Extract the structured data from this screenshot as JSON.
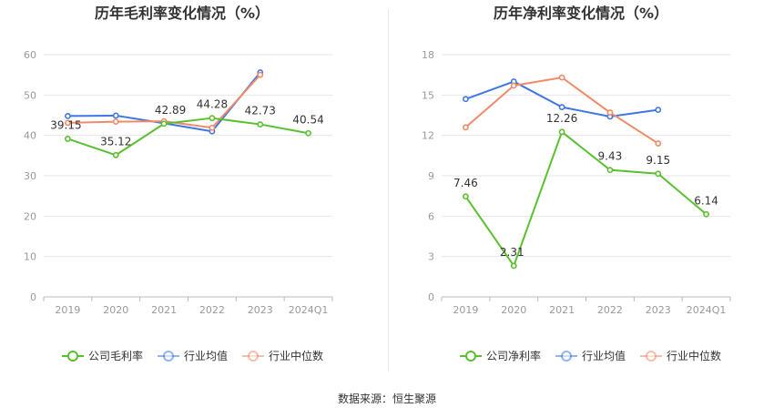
{
  "source_text": "数据来源：恒生聚源",
  "colors": {
    "company": "#5ac02f",
    "avg": "#3f77e0",
    "median": "#f08b6a",
    "axis": "#999999",
    "grid": "#e6e6e6",
    "label": "#333333",
    "title": "#333333"
  },
  "chart_data": [
    {
      "type": "line",
      "title": "历年毛利率变化情况（%）",
      "categories": [
        "2019",
        "2020",
        "2021",
        "2022",
        "2023",
        "2024Q1"
      ],
      "ylim": [
        0,
        60
      ],
      "yticks": [
        0,
        10,
        20,
        30,
        40,
        50,
        60
      ],
      "grid": true,
      "legend_position": "bottom",
      "series": [
        {
          "name": "公司毛利率",
          "key": "company",
          "values": [
            39.15,
            35.12,
            42.89,
            44.28,
            42.73,
            40.54
          ],
          "labels": [
            "39.15",
            "35.12",
            "42.89",
            "44.28",
            "42.73",
            "40.54"
          ]
        },
        {
          "name": "行业均值",
          "key": "avg",
          "values": [
            44.8,
            44.9,
            43.0,
            41.0,
            55.6,
            null
          ]
        },
        {
          "name": "行业中位数",
          "key": "median",
          "values": [
            43.1,
            43.4,
            43.5,
            41.9,
            55.0,
            null
          ]
        }
      ]
    },
    {
      "type": "line",
      "title": "历年净利率变化情况（%）",
      "categories": [
        "2019",
        "2020",
        "2021",
        "2022",
        "2023",
        "2024Q1"
      ],
      "ylim": [
        0,
        18
      ],
      "yticks": [
        0,
        3,
        6,
        9,
        12,
        15,
        18
      ],
      "grid": true,
      "legend_position": "bottom",
      "series": [
        {
          "name": "公司净利率",
          "key": "company",
          "values": [
            7.46,
            2.31,
            12.26,
            9.43,
            9.15,
            6.14
          ],
          "labels": [
            "7.46",
            "2.31",
            "12.26",
            "9.43",
            "9.15",
            "6.14"
          ]
        },
        {
          "name": "行业均值",
          "key": "avg",
          "values": [
            14.7,
            16.0,
            14.1,
            13.4,
            13.9,
            null
          ]
        },
        {
          "name": "行业中位数",
          "key": "median",
          "values": [
            12.6,
            15.7,
            16.3,
            13.7,
            11.4,
            null
          ]
        }
      ]
    }
  ]
}
